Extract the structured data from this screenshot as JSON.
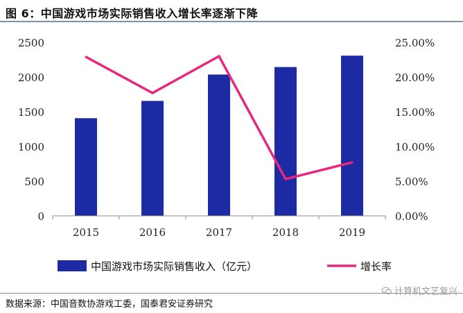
{
  "header": {
    "title": "图 6：中国游戏市场实际销售收入增长率逐渐下降"
  },
  "chart_data": {
    "type": "bar",
    "title": "图 6：中国游戏市场实际销售收入增长率逐渐下降",
    "categories": [
      "2015",
      "2016",
      "2017",
      "2018",
      "2019"
    ],
    "series": [
      {
        "name": "中国游戏市场实际销售收入（亿元）",
        "type": "bar",
        "axis": "left",
        "values": [
          1407,
          1656,
          2036,
          2144,
          2308
        ],
        "color": "#1c2aa3"
      },
      {
        "name": "增长率",
        "type": "line",
        "axis": "right",
        "values": [
          22.9,
          17.7,
          23.0,
          5.3,
          7.7
        ],
        "color": "#e8277d"
      }
    ],
    "y_left": {
      "min": 0,
      "max": 2500,
      "step": 500,
      "tick_labels": [
        "0",
        "500",
        "1000",
        "1500",
        "2000",
        "2500"
      ]
    },
    "y_right": {
      "min": 0,
      "max": 25,
      "step": 5,
      "tick_labels": [
        "0.00%",
        "5.00%",
        "10.00%",
        "15.00%",
        "20.00%",
        "25.00%"
      ]
    },
    "legend_position": "bottom",
    "grid": false
  },
  "footer": {
    "source": "数据来源：中国音数协游戏工委，国泰君安证券研究",
    "watermark": "计算机文艺复兴",
    "watermark_icon": "wechat-icon"
  }
}
